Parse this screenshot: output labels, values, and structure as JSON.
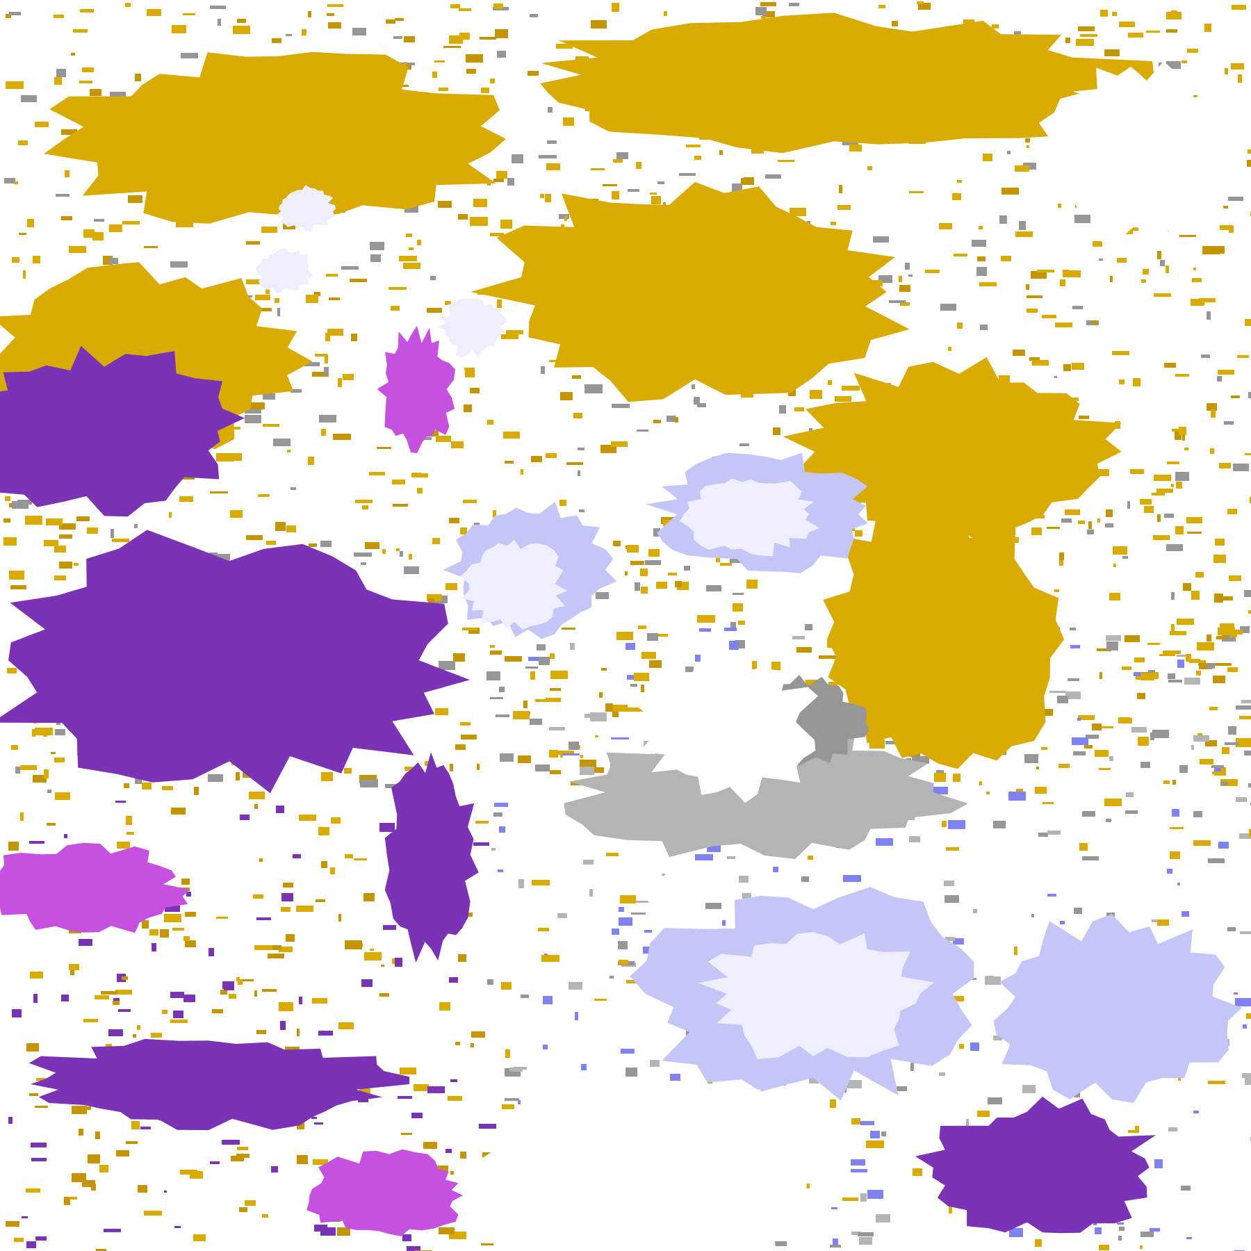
{
  "map": {
    "palette": {
      "background": "#ffffff",
      "gold": "#d9aa00",
      "dark_gold": "#c49500",
      "purple": "#7b33b5",
      "magenta": "#c650e0",
      "blue": "#7f82f0",
      "lavender": "#c4c6f8",
      "pale": "#eeeefe",
      "gray": "#969696",
      "light_gray": "#b4b4b4"
    }
  }
}
